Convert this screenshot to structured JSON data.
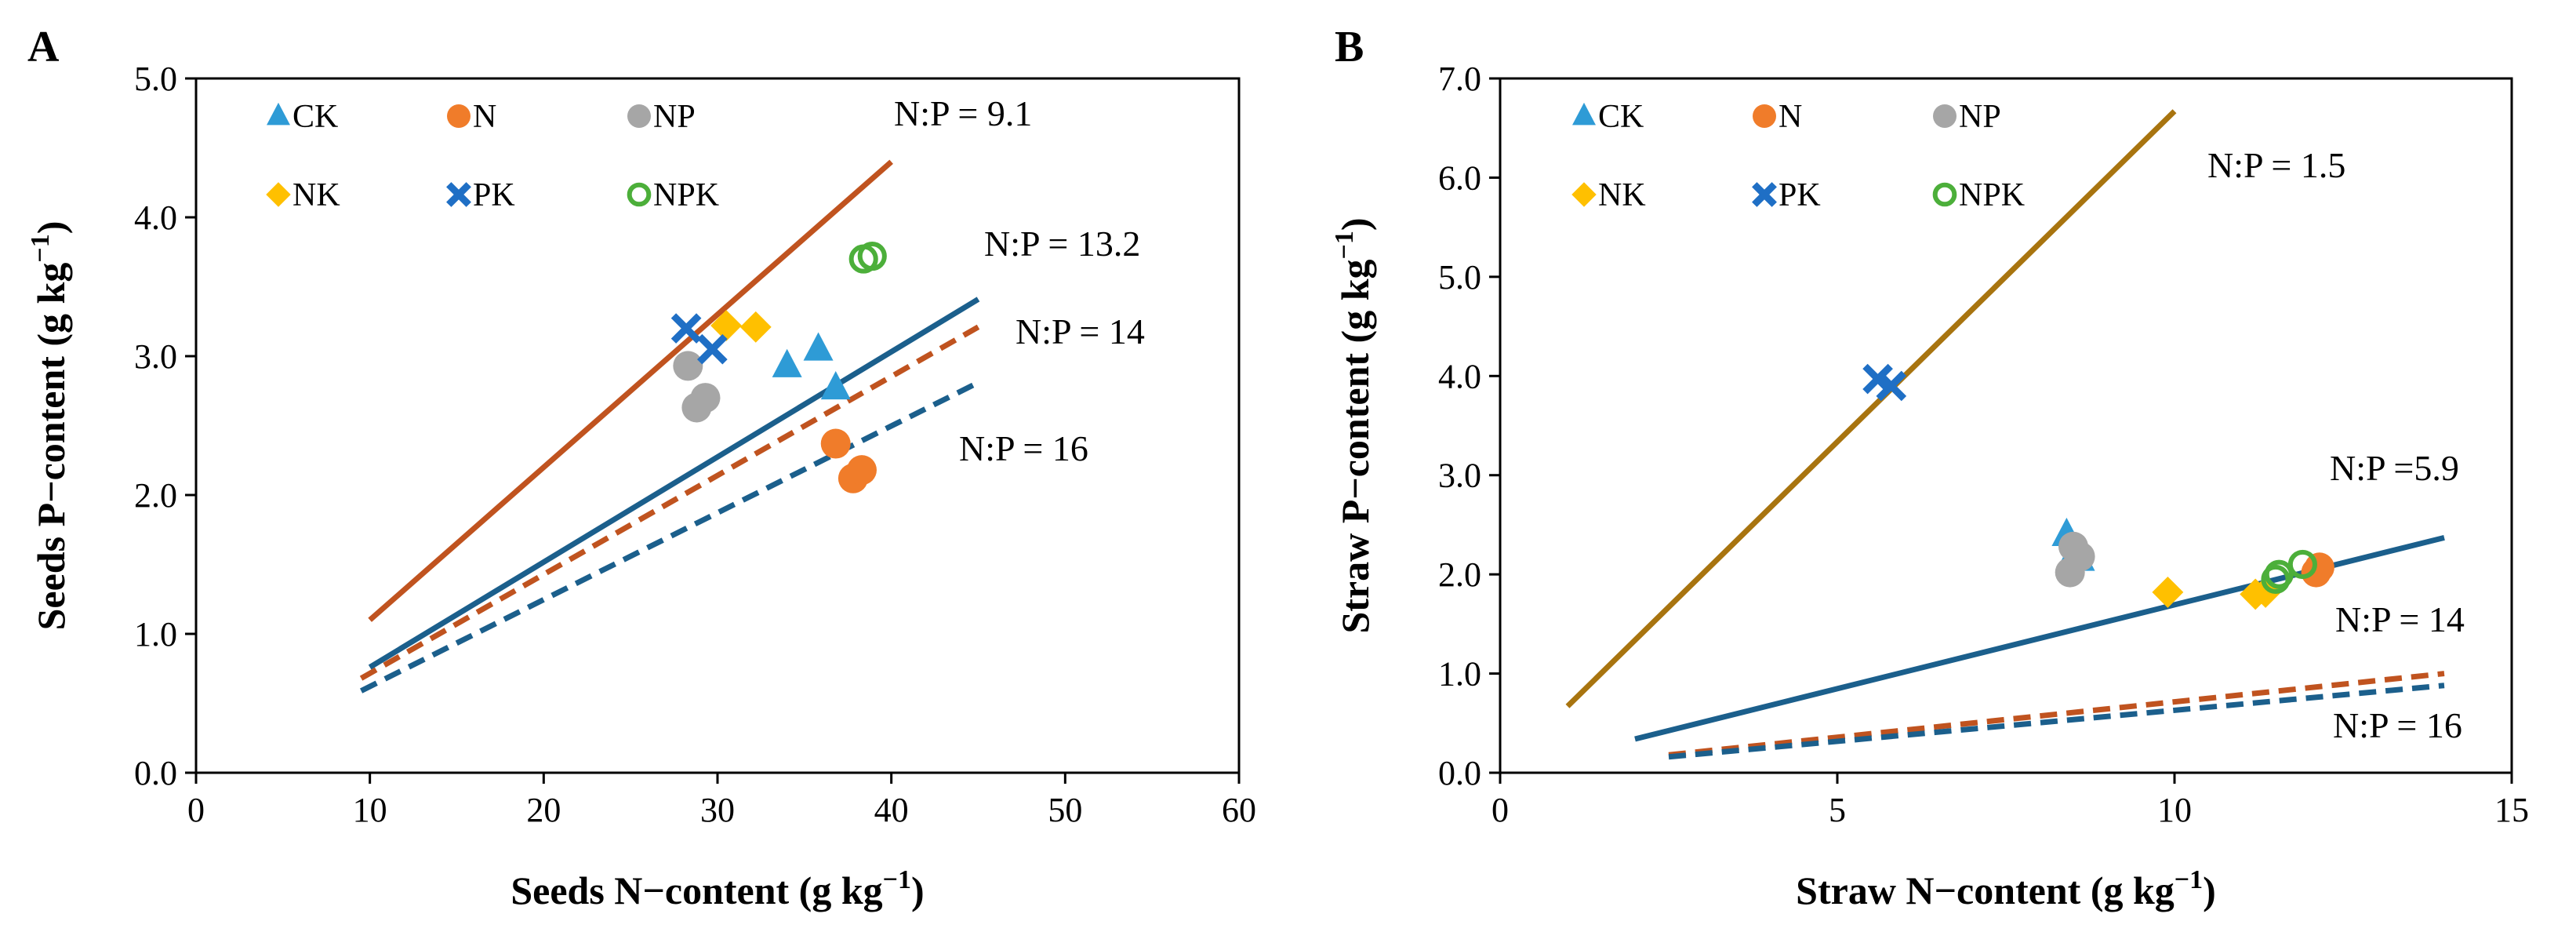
{
  "chart_data": [
    {
      "type": "scatter",
      "panel_label": "A",
      "xlabel": "Seeds N−content (g kg",
      "ylabel": "Seeds P−content (g kg",
      "unit_exponent": "−1",
      "unit_close": ")",
      "xlim": [
        0,
        60
      ],
      "ylim": [
        0,
        5
      ],
      "x_ticks": [
        "0",
        "10",
        "20",
        "30",
        "40",
        "50",
        "60"
      ],
      "y_ticks": [
        "0.0",
        "1.0",
        "2.0",
        "3.0",
        "4.0",
        "5.0"
      ],
      "legend_placement": "top-left",
      "series": [
        {
          "name": "CK",
          "marker": "triangle",
          "color": "#2E9BD6",
          "points": [
            [
              34.0,
              2.93
            ],
            [
              35.8,
              3.05
            ],
            [
              36.8,
              2.77
            ]
          ]
        },
        {
          "name": "N",
          "marker": "circle",
          "color": "#F07C2A",
          "points": [
            [
              36.8,
              2.37
            ],
            [
              37.8,
              2.12
            ],
            [
              38.3,
              2.18
            ]
          ]
        },
        {
          "name": "NP",
          "marker": "circle",
          "color": "#A6A6A6",
          "points": [
            [
              28.3,
              2.93
            ],
            [
              28.8,
              2.63
            ],
            [
              29.3,
              2.7
            ]
          ]
        },
        {
          "name": "NK",
          "marker": "diamond",
          "color": "#FFC000",
          "points": [
            [
              30.5,
              3.22
            ],
            [
              32.2,
              3.21
            ]
          ]
        },
        {
          "name": "PK",
          "marker": "x",
          "color": "#1F6FC5",
          "points": [
            [
              28.2,
              3.2
            ],
            [
              29.7,
              3.05
            ]
          ]
        },
        {
          "name": "NPK",
          "marker": "ring",
          "color": "#4CAF3A",
          "points": [
            [
              38.4,
              3.7
            ],
            [
              38.9,
              3.72
            ]
          ]
        }
      ],
      "ratio_lines": [
        {
          "label": "N:P = 9.1",
          "style": "solid",
          "color": "#C0531F",
          "from": [
            10,
            1.1
          ],
          "to": [
            40,
            4.4
          ]
        },
        {
          "label": "N:P = 13.2",
          "style": "solid",
          "color": "#1B5F8C",
          "from": [
            10,
            0.76
          ],
          "to": [
            45,
            3.41
          ]
        },
        {
          "label": "N:P = 14",
          "style": "dashed",
          "color": "#C0531F",
          "from": [
            9.5,
            0.68
          ],
          "to": [
            45,
            3.21
          ]
        },
        {
          "label": "N:P = 16",
          "style": "dashed",
          "color": "#1B5F8C",
          "from": [
            9.5,
            0.59
          ],
          "to": [
            45,
            2.81
          ]
        }
      ]
    },
    {
      "type": "scatter",
      "panel_label": "B",
      "xlabel": "Straw N−content (g kg",
      "ylabel": "Straw P−content (g kg",
      "unit_exponent": "−1",
      "unit_close": ")",
      "xlim": [
        0,
        15
      ],
      "ylim": [
        0,
        7
      ],
      "x_ticks": [
        "0",
        "5",
        "10",
        "15"
      ],
      "y_ticks": [
        "0.0",
        "1.0",
        "2.0",
        "3.0",
        "4.0",
        "5.0",
        "6.0",
        "7.0"
      ],
      "legend_placement": "top-left",
      "series": [
        {
          "name": "CK",
          "marker": "triangle",
          "color": "#2E9BD6",
          "points": [
            [
              8.4,
              2.4
            ],
            [
              8.5,
              2.2
            ],
            [
              8.6,
              2.15
            ]
          ]
        },
        {
          "name": "N",
          "marker": "circle",
          "color": "#F07C2A",
          "points": [
            [
              12.1,
              2.02
            ],
            [
              12.15,
              2.07
            ]
          ]
        },
        {
          "name": "NP",
          "marker": "circle",
          "color": "#A6A6A6",
          "points": [
            [
              8.45,
              2.02
            ],
            [
              8.5,
              2.28
            ],
            [
              8.6,
              2.18
            ]
          ]
        },
        {
          "name": "NK",
          "marker": "diamond",
          "color": "#FFC000",
          "points": [
            [
              9.9,
              1.82
            ],
            [
              11.2,
              1.8
            ],
            [
              11.35,
              1.82
            ]
          ]
        },
        {
          "name": "PK",
          "marker": "x",
          "color": "#1F6FC5",
          "points": [
            [
              5.6,
              3.97
            ],
            [
              5.8,
              3.9
            ]
          ]
        },
        {
          "name": "NPK",
          "marker": "ring",
          "color": "#4CAF3A",
          "points": [
            [
              11.5,
              1.95
            ],
            [
              11.55,
              2.0
            ],
            [
              11.9,
              2.1
            ]
          ]
        }
      ],
      "ratio_lines": [
        {
          "label": "N:P = 1.5",
          "style": "solid",
          "color": "#A8740F",
          "from": [
            1,
            0.67
          ],
          "to": [
            10,
            6.67
          ]
        },
        {
          "label": "N:P =5.9",
          "style": "solid",
          "color": "#1B5F8C",
          "from": [
            2,
            0.34
          ],
          "to": [
            14,
            2.37
          ]
        },
        {
          "label": "N:P = 14",
          "style": "dashed",
          "color": "#C0531F",
          "from": [
            2.5,
            0.18
          ],
          "to": [
            14,
            1.0
          ]
        },
        {
          "label": "N:P = 16",
          "style": "dashed",
          "color": "#1B5F8C",
          "from": [
            2.5,
            0.16
          ],
          "to": [
            14,
            0.88
          ]
        }
      ]
    }
  ]
}
